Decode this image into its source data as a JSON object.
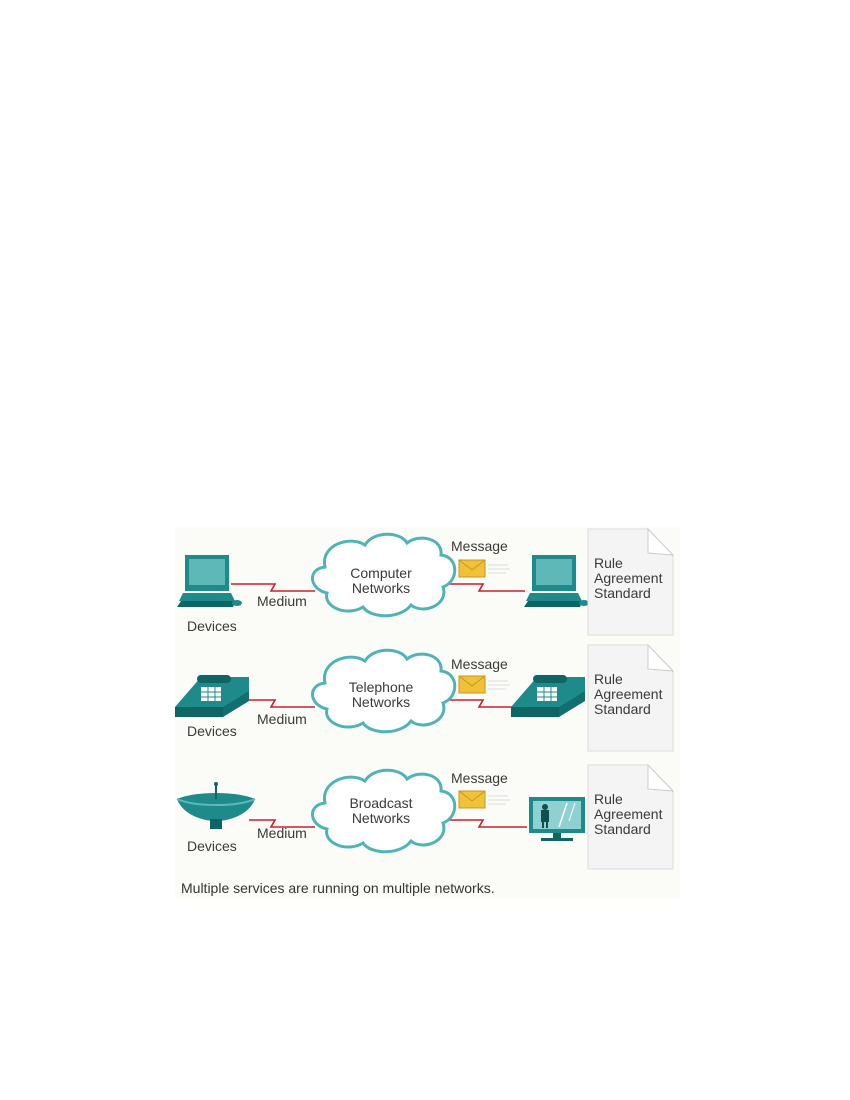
{
  "rows": [
    {
      "network": [
        "Computer",
        "Networks"
      ],
      "device_label": "Devices",
      "medium_label": "Medium",
      "message_label": "Message",
      "doc": [
        "Rule",
        "Agreement",
        "Standard"
      ]
    },
    {
      "network": [
        "Telephone",
        "Networks"
      ],
      "device_label": "Devices",
      "medium_label": "Medium",
      "message_label": "Message",
      "doc": [
        "Rule",
        "Agreement",
        "Standard"
      ]
    },
    {
      "network": [
        "Broadcast",
        "Networks"
      ],
      "device_label": "Devices",
      "medium_label": "Medium",
      "message_label": "Message",
      "doc": [
        "Rule",
        "Agreement",
        "Standard"
      ]
    }
  ],
  "caption": "Multiple services are running on multiple networks.",
  "colors": {
    "device_teal": "#1f8a8a",
    "device_dark": "#0f6464",
    "cloud_stroke": "#4fb3b8",
    "link_red": "#c8202f",
    "envelope": "#f0c23a",
    "doc_bg": "#f4f4f4"
  },
  "icons": [
    "computer-icon",
    "telephone-icon",
    "satellite-dish-icon",
    "television-icon",
    "envelope-icon",
    "document-icon",
    "cloud-icon"
  ]
}
